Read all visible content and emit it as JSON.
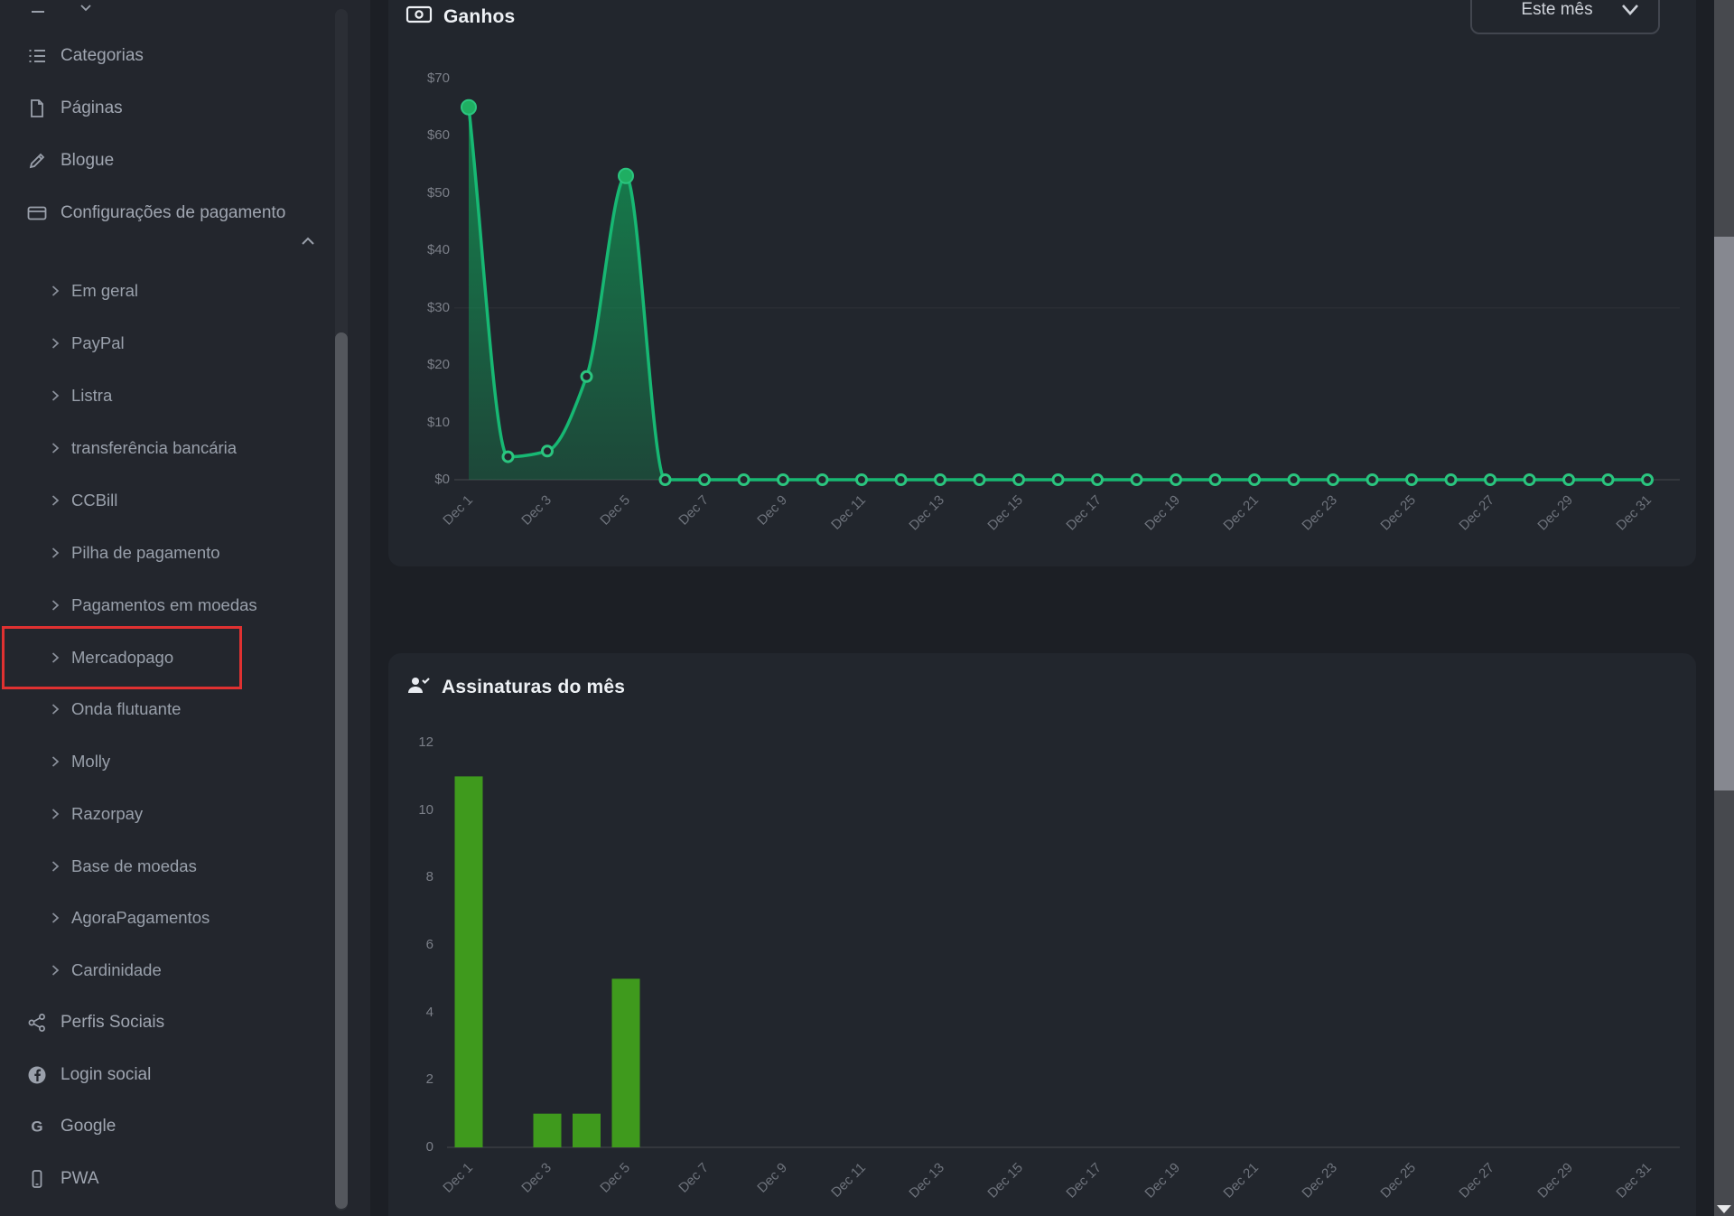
{
  "sidebar": {
    "items": [
      {
        "type": "section",
        "label": "Categorias",
        "icon": "list-icon"
      },
      {
        "type": "section",
        "label": "Páginas",
        "icon": "page-icon"
      },
      {
        "type": "section",
        "label": "Blogue",
        "icon": "pencil-icon"
      },
      {
        "type": "section",
        "label": "Configurações de pagamento",
        "icon": "credit-card-icon",
        "state": "expanded"
      },
      {
        "type": "sub",
        "label": "Em geral"
      },
      {
        "type": "sub",
        "label": "PayPal"
      },
      {
        "type": "sub",
        "label": "Listra"
      },
      {
        "type": "sub",
        "label": "transferência bancária"
      },
      {
        "type": "sub",
        "label": "CCBill"
      },
      {
        "type": "sub",
        "label": "Pilha de pagamento"
      },
      {
        "type": "sub",
        "label": "Pagamentos em moedas"
      },
      {
        "type": "sub",
        "label": "Mercadopago",
        "highlighted": true
      },
      {
        "type": "sub",
        "label": "Onda flutuante"
      },
      {
        "type": "sub",
        "label": "Molly"
      },
      {
        "type": "sub",
        "label": "Razorpay"
      },
      {
        "type": "sub",
        "label": "Base de moedas"
      },
      {
        "type": "sub",
        "label": "AgoraPagamentos"
      },
      {
        "type": "sub",
        "label": "Cardinidade"
      },
      {
        "type": "section",
        "label": "Perfis Sociais",
        "icon": "share-icon"
      },
      {
        "type": "section",
        "label": "Login social",
        "icon": "facebook-icon"
      },
      {
        "type": "section",
        "label": "Google",
        "icon": "google-icon"
      },
      {
        "type": "section",
        "label": "PWA",
        "icon": "mobile-icon"
      }
    ],
    "highlight_color": "#e03131"
  },
  "earnings_card": {
    "title": "Ganhos",
    "title_icon": "money-icon",
    "period_selector": {
      "value": "Este mês",
      "icon": "chevron-down-icon"
    }
  },
  "subscriptions_card": {
    "title": "Assinaturas do mês",
    "title_icon": "user-check-icon"
  },
  "chart_data": [
    {
      "type": "area",
      "title": "Ganhos",
      "categories": [
        "Dec 1",
        "Dec 2",
        "Dec 3",
        "Dec 4",
        "Dec 5",
        "Dec 6",
        "Dec 7",
        "Dec 8",
        "Dec 9",
        "Dec 10",
        "Dec 11",
        "Dec 12",
        "Dec 13",
        "Dec 14",
        "Dec 15",
        "Dec 16",
        "Dec 17",
        "Dec 18",
        "Dec 19",
        "Dec 20",
        "Dec 21",
        "Dec 22",
        "Dec 23",
        "Dec 24",
        "Dec 25",
        "Dec 26",
        "Dec 27",
        "Dec 28",
        "Dec 29",
        "Dec 30",
        "Dec 31"
      ],
      "values": [
        65,
        4,
        5,
        18,
        53,
        0,
        0,
        0,
        0,
        0,
        0,
        0,
        0,
        0,
        0,
        0,
        0,
        0,
        0,
        0,
        0,
        0,
        0,
        0,
        0,
        0,
        0,
        0,
        0,
        0,
        0
      ],
      "x_labels_every": 2,
      "ytick_labels": [
        "$70",
        "$60",
        "$50",
        "$40",
        "$30",
        "$20",
        "$10",
        "$0"
      ],
      "ylim": [
        0,
        70
      ],
      "grid_value": 30,
      "filled_marker_days": [
        1,
        5
      ],
      "line_color": "#17b873",
      "marker_stroke": "#2bc57f",
      "fill_top": "rgba(18,148,84,0.85)",
      "fill_bottom": "rgba(18,148,84,0.30)",
      "legend": "none"
    },
    {
      "type": "bar",
      "title": "Assinaturas do mês",
      "categories": [
        "Dec 1",
        "Dec 2",
        "Dec 3",
        "Dec 4",
        "Dec 5",
        "Dec 6",
        "Dec 7",
        "Dec 8",
        "Dec 9",
        "Dec 10",
        "Dec 11",
        "Dec 12",
        "Dec 13",
        "Dec 14",
        "Dec 15",
        "Dec 16",
        "Dec 17",
        "Dec 18",
        "Dec 19",
        "Dec 20",
        "Dec 21",
        "Dec 22",
        "Dec 23",
        "Dec 24",
        "Dec 25",
        "Dec 26",
        "Dec 27",
        "Dec 28",
        "Dec 29",
        "Dec 30",
        "Dec 31"
      ],
      "values": [
        11,
        0,
        1,
        1,
        5,
        0,
        0,
        0,
        0,
        0,
        0,
        0,
        0,
        0,
        0,
        0,
        0,
        0,
        0,
        0,
        0,
        0,
        0,
        0,
        0,
        0,
        0,
        0,
        0,
        0,
        0
      ],
      "x_labels_every": 2,
      "ytick_labels": [
        "12",
        "10",
        "8",
        "6",
        "4",
        "2",
        "0"
      ],
      "yticks": [
        12,
        10,
        8,
        6,
        4,
        2,
        0
      ],
      "ylim": [
        0,
        12
      ],
      "bar_color": "#3f9a1d",
      "legend": "none"
    }
  ]
}
